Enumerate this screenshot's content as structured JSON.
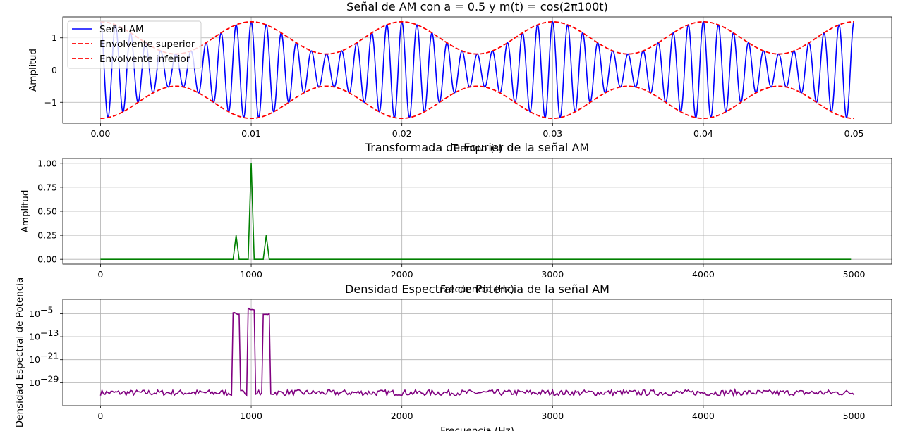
{
  "chart_data": [
    {
      "type": "line",
      "title": "Señal de AM con a = 0.5 y m(t) = cos(2π100t)",
      "xlabel": "Tiempo (s)",
      "ylabel": "Amplitud",
      "xlim": [
        -0.0025,
        0.0525
      ],
      "ylim": [
        -1.65,
        1.65
      ],
      "xticks": [
        0.0,
        0.01,
        0.02,
        0.03,
        0.04,
        0.05
      ],
      "xtick_labels": [
        "0.00",
        "0.01",
        "0.02",
        "0.03",
        "0.04",
        "0.05"
      ],
      "yticks": [
        -1,
        0,
        1
      ],
      "ytick_labels": [
        "−1",
        "0",
        "1"
      ],
      "grid": true,
      "legend": "upper-left",
      "model": {
        "a": 0.5,
        "message_frequency_hz": 100,
        "carrier_frequency_hz": 1000,
        "t_start": 0.0,
        "t_end": 0.05
      },
      "series": [
        {
          "name": "Señal AM",
          "color": "#0000ff",
          "style": "solid",
          "formula": "(1 + 0.5·cos(2π·100·t))·cos(2π·1000·t)"
        },
        {
          "name": "Envolvente superior",
          "color": "#ff0000",
          "style": "dashed",
          "formula": "1 + 0.5·cos(2π·100·t)"
        },
        {
          "name": "Envolvente inferior",
          "color": "#ff0000",
          "style": "dashed",
          "formula": "−(1 + 0.5·cos(2π·100·t))"
        }
      ]
    },
    {
      "type": "line",
      "title": "Transformada de Fourier de la señal AM",
      "xlabel": "Frecuencia (Hz)",
      "ylabel": "Amplitud",
      "xlim": [
        -250,
        5250
      ],
      "ylim": [
        -0.05,
        1.05
      ],
      "xticks": [
        0,
        1000,
        2000,
        3000,
        4000,
        5000
      ],
      "xtick_labels": [
        "0",
        "1000",
        "2000",
        "3000",
        "4000",
        "5000"
      ],
      "yticks": [
        0.0,
        0.25,
        0.5,
        0.75,
        1.0
      ],
      "ytick_labels": [
        "0.00",
        "0.25",
        "0.50",
        "0.75",
        "1.00"
      ],
      "grid": true,
      "series": [
        {
          "color": "#008000",
          "x_start": 0,
          "x_end": 4980,
          "x_step": 20,
          "baseline": 0,
          "peaks": [
            {
              "x": 900,
              "y": 0.25
            },
            {
              "x": 1000,
              "y": 1.0
            },
            {
              "x": 1100,
              "y": 0.25
            }
          ]
        }
      ]
    },
    {
      "type": "line",
      "title": "Densidad Espectral de Potencia de la señal AM",
      "xlabel": "Frecuencia (Hz)",
      "ylabel": "Densidad Espectral de Potencia",
      "yscale": "log",
      "xlim": [
        -250,
        5250
      ],
      "ylim_exp": [
        -37,
        0
      ],
      "xticks": [
        0,
        1000,
        2000,
        3000,
        4000,
        5000
      ],
      "xtick_labels": [
        "0",
        "1000",
        "2000",
        "3000",
        "4000",
        "5000"
      ],
      "ytick_exps": [
        -29,
        -21,
        -13,
        -5
      ],
      "ytick_labels": [
        "10",
        "10",
        "10",
        "10"
      ],
      "ytick_superscripts": [
        "−29",
        "−21",
        "−13",
        "−5"
      ],
      "grid": true,
      "series": [
        {
          "color": "#800080",
          "x_start": 0,
          "x_end": 5000,
          "noise_exp": [
            -33.5,
            -31.5
          ],
          "bands": [
            {
              "x": [
                880,
                920
              ],
              "exp": -4.5
            },
            {
              "x": [
                980,
                1020
              ],
              "exp": -3.0
            },
            {
              "x": [
                1080,
                1120
              ],
              "exp": -4.5
            }
          ]
        }
      ]
    }
  ]
}
